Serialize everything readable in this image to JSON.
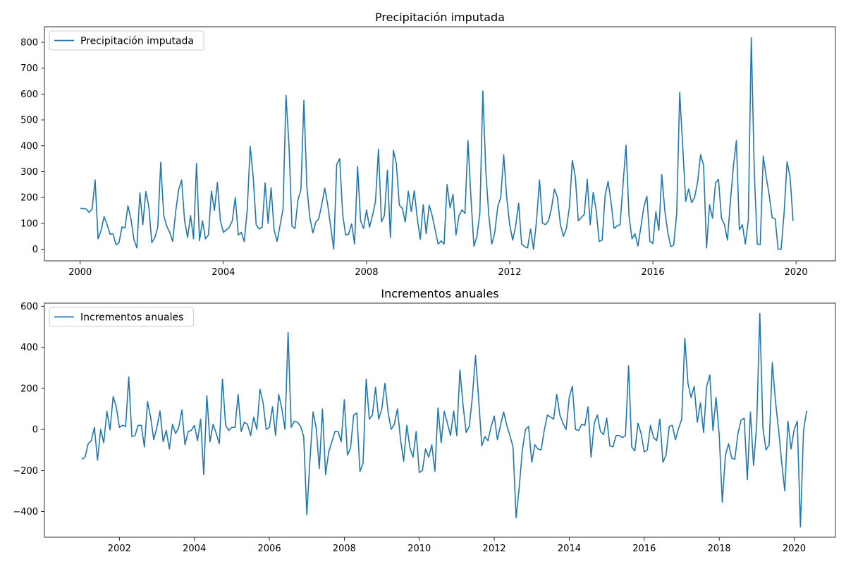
{
  "chart_data": [
    {
      "type": "line",
      "title": "Precipitación imputada",
      "xlabel": "",
      "ylabel": "",
      "xlim": [
        1999.0,
        2021.1
      ],
      "ylim": [
        -45,
        860
      ],
      "xticks": [
        2000,
        2004,
        2008,
        2012,
        2016,
        2020
      ],
      "yticks": [
        0,
        100,
        200,
        300,
        400,
        500,
        600,
        700,
        800
      ],
      "grid": false,
      "legend": "top-left",
      "color": "#1f77b4",
      "x_start": 2000.0,
      "x_step": 0.08333,
      "series": [
        {
          "name": "Precipitación imputada",
          "values": [
            158,
            158,
            156,
            142,
            156,
            268,
            40,
            72,
            126,
            96,
            58,
            60,
            17,
            25,
            86,
            82,
            168,
            118,
            38,
            5,
            218,
            95,
            223,
            165,
            25,
            44,
            85,
            336,
            130,
            90,
            65,
            30,
            145,
            230,
            268,
            110,
            45,
            130,
            40,
            332,
            33,
            110,
            40,
            55,
            225,
            150,
            258,
            110,
            65,
            75,
            85,
            110,
            200,
            55,
            65,
            30,
            152,
            398,
            280,
            95,
            78,
            85,
            256,
            100,
            238,
            75,
            30,
            92,
            155,
            595,
            400,
            90,
            80,
            190,
            230,
            575,
            240,
            122,
            63,
            105,
            118,
            174,
            236,
            170,
            85,
            0,
            328,
            350,
            135,
            55,
            58,
            98,
            20,
            320,
            110,
            80,
            152,
            85,
            130,
            185,
            387,
            106,
            130,
            306,
            45,
            382,
            330,
            170,
            158,
            105,
            224,
            145,
            226,
            120,
            38,
            172,
            60,
            170,
            130,
            75,
            20,
            32,
            20,
            250,
            160,
            212,
            55,
            130,
            152,
            138,
            420,
            200,
            12,
            48,
            140,
            612,
            300,
            130,
            20,
            65,
            165,
            200,
            365,
            200,
            95,
            35,
            90,
            178,
            20,
            10,
            5,
            78,
            0,
            112,
            268,
            100,
            95,
            110,
            158,
            232,
            200,
            95,
            50,
            80,
            160,
            343,
            280,
            110,
            122,
            135,
            270,
            95,
            220,
            150,
            30,
            35,
            208,
            262,
            180,
            80,
            90,
            95,
            250,
            402,
            130,
            40,
            60,
            12,
            88,
            165,
            205,
            30,
            22,
            145,
            72,
            288,
            150,
            65,
            10,
            17,
            140,
            606,
            400,
            185,
            233,
            180,
            200,
            260,
            365,
            325,
            5,
            172,
            120,
            256,
            270,
            120,
            95,
            35,
            185,
            320,
            420,
            75,
            95,
            20,
            110,
            818,
            300,
            20,
            18,
            360,
            280,
            210,
            122,
            118,
            0,
            0,
            140,
            338,
            280,
            110
          ]
        }
      ]
    },
    {
      "type": "line",
      "title": "Incrementos anuales",
      "xlabel": "",
      "ylabel": "",
      "xlim": [
        2000.0,
        2021.1
      ],
      "ylim": [
        -525,
        615
      ],
      "xticks": [
        2002,
        2004,
        2006,
        2008,
        2010,
        2012,
        2014,
        2016,
        2018,
        2020
      ],
      "yticks": [
        -400,
        -200,
        0,
        200,
        400,
        600
      ],
      "grid": false,
      "legend": "top-left",
      "color": "#1f77b4",
      "x_start": 2001.0,
      "x_step": 0.08333,
      "series": [
        {
          "name": "Incrementos anuales",
          "values": [
            -145,
            -135,
            -70,
            -55,
            10,
            -150,
            0,
            -65,
            88,
            -2,
            160,
            110,
            10,
            20,
            15,
            255,
            -35,
            -30,
            20,
            20,
            -85,
            135,
            60,
            -50,
            10,
            90,
            -60,
            -5,
            -95,
            25,
            -20,
            10,
            95,
            -75,
            -10,
            -5,
            20,
            -55,
            50,
            -220,
            165,
            -60,
            25,
            -20,
            -70,
            245,
            20,
            -5,
            10,
            10,
            170,
            -10,
            35,
            25,
            -30,
            60,
            0,
            195,
            130,
            0,
            10,
            110,
            -30,
            170,
            100,
            0,
            472,
            10,
            40,
            35,
            15,
            -35,
            -415,
            -150,
            85,
            5,
            -190,
            100,
            -220,
            -110,
            -60,
            -10,
            -10,
            -60,
            145,
            -125,
            -90,
            70,
            80,
            -205,
            -165,
            245,
            50,
            70,
            205,
            50,
            100,
            225,
            85,
            0,
            25,
            100,
            -50,
            -155,
            20,
            -90,
            -135,
            -10,
            -210,
            -200,
            -95,
            -135,
            -75,
            -205,
            105,
            -65,
            88,
            30,
            -30,
            90,
            -30,
            290,
            120,
            -15,
            15,
            160,
            360,
            150,
            -80,
            -35,
            -55,
            15,
            65,
            -50,
            20,
            85,
            20,
            -30,
            -85,
            -430,
            -280,
            -100,
            0,
            15,
            -160,
            -75,
            -95,
            -100,
            -5,
            70,
            60,
            50,
            170,
            70,
            30,
            0,
            155,
            210,
            0,
            -5,
            25,
            20,
            110,
            -135,
            30,
            70,
            -10,
            -25,
            55,
            -80,
            -85,
            -30,
            -30,
            -40,
            -30,
            310,
            -85,
            -105,
            30,
            -20,
            -110,
            -100,
            20,
            -40,
            -55,
            50,
            -160,
            -125,
            15,
            20,
            -50,
            5,
            50,
            445,
            225,
            155,
            210,
            35,
            130,
            -15,
            210,
            265,
            -5,
            155,
            -25,
            -355,
            -125,
            -70,
            -140,
            -145,
            -20,
            45,
            55,
            -245,
            85,
            -175,
            20,
            565,
            5,
            -100,
            -75,
            325,
            140,
            0,
            -160,
            -300,
            40,
            -95,
            0,
            40,
            -475,
            -5,
            90
          ]
        }
      ]
    }
  ]
}
